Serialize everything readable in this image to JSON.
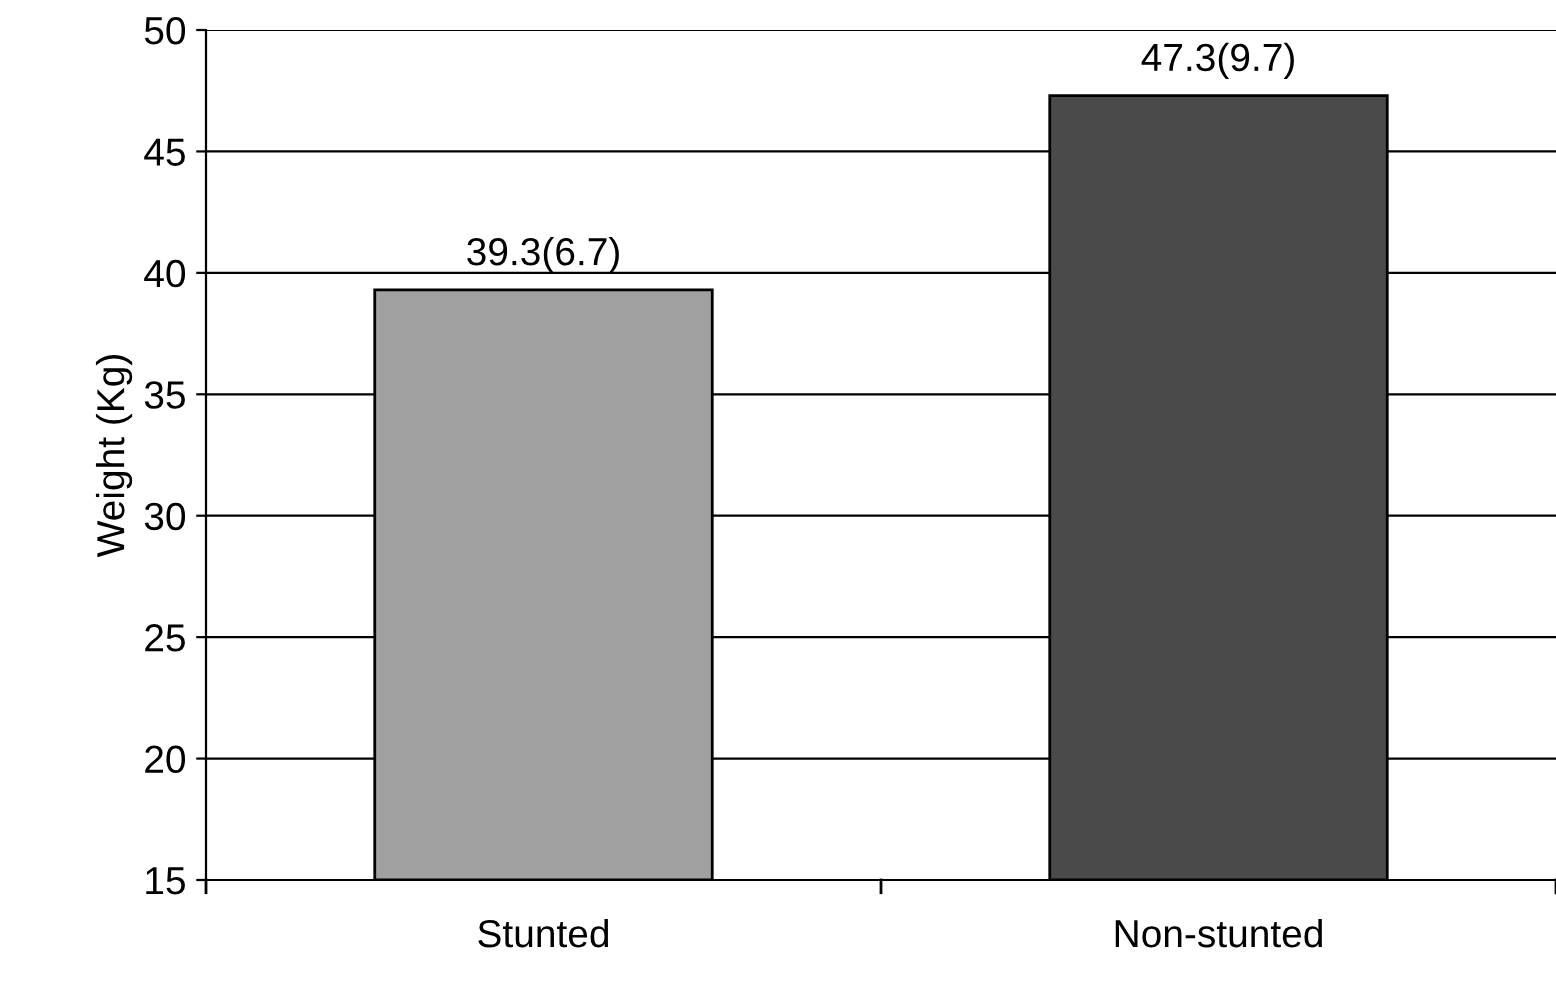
{
  "chart_data": {
    "type": "bar",
    "ylabel": "Weight (Kg)",
    "categories": [
      "Stunted",
      "Non-stunted"
    ],
    "values": [
      39.3,
      47.3
    ],
    "colors": [
      "#a0a0a0",
      "#4a4a4a"
    ],
    "value_labels": [
      "39.3(6.7)",
      "47.3(9.7)"
    ],
    "ylim": [
      15,
      50
    ],
    "yticks": [
      15,
      20,
      25,
      30,
      35,
      40,
      45,
      50
    ],
    "grid": "y"
  }
}
